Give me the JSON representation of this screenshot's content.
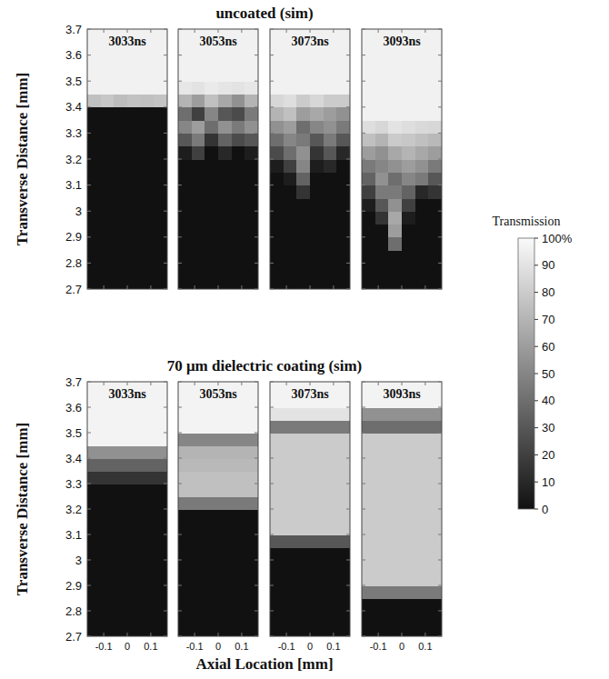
{
  "chart_data": [
    {
      "type": "heatmap",
      "title": "uncoated (sim)",
      "ylabel": "Transverse Distance [mm]",
      "xlim": [
        -0.17,
        0.17
      ],
      "xticks": [
        -0.1,
        0,
        0.1
      ],
      "ylim": [
        2.7,
        3.7
      ],
      "yticks": [
        2.7,
        2.8,
        2.9,
        3,
        3.1,
        3.2,
        3.3,
        3.4,
        3.5,
        3.6,
        3.7
      ],
      "tick_labels": "y",
      "colorbar": {
        "title": "Transmission",
        "range": [
          0,
          100
        ],
        "ticks": [
          0,
          10,
          20,
          30,
          40,
          50,
          60,
          70,
          80,
          90,
          {
            "value": 100,
            "label": "100%"
          }
        ]
      },
      "panels": [
        {
          "label": "3033ns",
          "cells": [
            [
              0,
              0,
              0,
              0,
              0,
              0
            ],
            [
              0,
              0,
              0,
              0,
              0,
              0
            ],
            [
              0,
              0,
              0,
              0,
              0,
              0
            ],
            [
              0,
              0,
              0,
              0,
              0,
              0
            ],
            [
              0,
              0,
              0,
              0,
              0,
              0
            ],
            [
              0,
              0,
              0,
              0,
              0,
              0
            ],
            [
              0,
              0,
              0,
              0,
              0,
              0
            ],
            [
              0,
              0,
              0,
              0,
              0,
              0
            ],
            [
              0,
              0,
              0,
              0,
              0,
              0
            ],
            [
              0,
              0,
              0,
              0,
              0,
              0
            ],
            [
              0,
              0,
              0,
              0,
              0,
              0
            ],
            [
              0,
              0,
              0,
              0,
              0,
              0
            ],
            [
              0,
              0,
              0,
              0,
              0,
              0
            ],
            [
              0,
              0,
              0,
              0,
              0,
              0
            ],
            [
              75,
              78,
              74,
              76,
              75,
              77
            ],
            [
              96,
              96,
              96,
              96,
              96,
              96
            ],
            [
              96,
              96,
              96,
              96,
              96,
              96
            ],
            [
              96,
              96,
              96,
              96,
              96,
              96
            ],
            [
              96,
              96,
              96,
              96,
              96,
              96
            ],
            [
              96,
              96,
              96,
              96,
              96,
              96
            ]
          ]
        },
        {
          "label": "3053ns",
          "cells": [
            [
              0,
              0,
              0,
              0,
              0,
              0
            ],
            [
              0,
              0,
              0,
              0,
              0,
              0
            ],
            [
              0,
              0,
              0,
              0,
              0,
              0
            ],
            [
              0,
              0,
              0,
              0,
              0,
              0
            ],
            [
              0,
              0,
              0,
              0,
              0,
              0
            ],
            [
              0,
              0,
              0,
              0,
              0,
              0
            ],
            [
              0,
              0,
              0,
              0,
              0,
              0
            ],
            [
              0,
              0,
              0,
              0,
              0,
              0
            ],
            [
              0,
              0,
              0,
              0,
              0,
              0
            ],
            [
              0,
              0,
              0,
              0,
              0,
              0
            ],
            [
              5,
              20,
              0,
              10,
              0,
              5
            ],
            [
              30,
              45,
              15,
              35,
              25,
              30
            ],
            [
              50,
              60,
              40,
              55,
              45,
              55
            ],
            [
              40,
              20,
              50,
              30,
              25,
              45
            ],
            [
              70,
              60,
              75,
              65,
              55,
              70
            ],
            [
              92,
              90,
              93,
              91,
              90,
              92
            ],
            [
              96,
              96,
              96,
              96,
              96,
              96
            ],
            [
              96,
              96,
              96,
              96,
              96,
              96
            ],
            [
              96,
              96,
              96,
              96,
              96,
              96
            ],
            [
              96,
              96,
              96,
              96,
              96,
              96
            ]
          ]
        },
        {
          "label": "3073ns",
          "cells": [
            [
              0,
              0,
              0,
              0,
              0,
              0
            ],
            [
              0,
              0,
              0,
              0,
              0,
              0
            ],
            [
              0,
              0,
              0,
              0,
              0,
              0
            ],
            [
              0,
              0,
              0,
              0,
              0,
              0
            ],
            [
              0,
              0,
              0,
              0,
              0,
              0
            ],
            [
              0,
              0,
              0,
              0,
              0,
              0
            ],
            [
              0,
              0,
              0,
              0,
              0,
              0
            ],
            [
              0,
              0,
              15,
              0,
              0,
              0
            ],
            [
              0,
              5,
              35,
              0,
              0,
              0
            ],
            [
              5,
              20,
              50,
              5,
              10,
              0
            ],
            [
              25,
              40,
              55,
              15,
              30,
              10
            ],
            [
              40,
              50,
              45,
              30,
              45,
              30
            ],
            [
              55,
              60,
              40,
              50,
              55,
              45
            ],
            [
              70,
              75,
              60,
              65,
              60,
              55
            ],
            [
              85,
              88,
              80,
              85,
              80,
              80
            ],
            [
              96,
              96,
              96,
              96,
              96,
              96
            ],
            [
              96,
              96,
              96,
              96,
              96,
              96
            ],
            [
              96,
              96,
              96,
              96,
              96,
              96
            ],
            [
              96,
              96,
              96,
              96,
              96,
              96
            ],
            [
              96,
              96,
              96,
              96,
              96,
              96
            ]
          ]
        },
        {
          "label": "3093ns",
          "cells": [
            [
              0,
              0,
              0,
              0,
              0,
              0
            ],
            [
              0,
              0,
              0,
              0,
              0,
              0
            ],
            [
              0,
              0,
              0,
              0,
              0,
              0
            ],
            [
              0,
              0,
              40,
              0,
              0,
              0
            ],
            [
              0,
              0,
              60,
              0,
              0,
              0
            ],
            [
              0,
              15,
              65,
              5,
              0,
              0
            ],
            [
              5,
              30,
              55,
              20,
              0,
              0
            ],
            [
              20,
              45,
              45,
              35,
              10,
              15
            ],
            [
              35,
              55,
              40,
              50,
              45,
              30
            ],
            [
              45,
              50,
              55,
              60,
              55,
              45
            ],
            [
              60,
              55,
              65,
              70,
              65,
              60
            ],
            [
              75,
              70,
              80,
              78,
              75,
              72
            ],
            [
              88,
              85,
              90,
              88,
              86,
              85
            ],
            [
              96,
              96,
              96,
              96,
              96,
              96
            ],
            [
              96,
              96,
              96,
              96,
              96,
              96
            ],
            [
              96,
              96,
              96,
              96,
              96,
              96
            ],
            [
              96,
              96,
              96,
              96,
              96,
              96
            ],
            [
              96,
              96,
              96,
              96,
              96,
              96
            ],
            [
              96,
              96,
              96,
              96,
              96,
              96
            ],
            [
              96,
              96,
              96,
              96,
              96,
              96
            ]
          ]
        }
      ]
    },
    {
      "type": "heatmap",
      "title": "70 μm dielectric coating (sim)",
      "xlabel": "Axial Location [mm]",
      "ylabel": "Transverse Distance [mm]",
      "xlim": [
        -0.17,
        0.17
      ],
      "xticks": [
        -0.1,
        0,
        0.1
      ],
      "ylim": [
        2.7,
        3.7
      ],
      "yticks": [
        2.7,
        2.8,
        2.9,
        3,
        3.1,
        3.2,
        3.3,
        3.4,
        3.5,
        3.6,
        3.7
      ],
      "tick_labels": true,
      "panels": [
        {
          "label": "3033ns",
          "cells": [
            [
              0
            ],
            [
              0
            ],
            [
              0
            ],
            [
              0
            ],
            [
              0
            ],
            [
              0
            ],
            [
              0
            ],
            [
              0
            ],
            [
              0
            ],
            [
              0
            ],
            [
              0
            ],
            [
              0
            ],
            [
              15
            ],
            [
              35
            ],
            [
              55
            ],
            [
              97
            ],
            [
              97
            ],
            [
              97
            ],
            [
              97
            ],
            [
              97
            ]
          ]
        },
        {
          "label": "3053ns",
          "cells": [
            [
              0
            ],
            [
              0
            ],
            [
              0
            ],
            [
              0
            ],
            [
              0
            ],
            [
              0
            ],
            [
              0
            ],
            [
              0
            ],
            [
              0
            ],
            [
              0
            ],
            [
              45
            ],
            [
              75
            ],
            [
              75
            ],
            [
              72
            ],
            [
              70
            ],
            [
              50
            ],
            [
              97
            ],
            [
              97
            ],
            [
              97
            ],
            [
              97
            ]
          ]
        },
        {
          "label": "3073ns",
          "cells": [
            [
              0
            ],
            [
              0
            ],
            [
              0
            ],
            [
              0
            ],
            [
              0
            ],
            [
              0
            ],
            [
              0
            ],
            [
              30
            ],
            [
              80
            ],
            [
              80
            ],
            [
              80
            ],
            [
              80
            ],
            [
              80
            ],
            [
              80
            ],
            [
              80
            ],
            [
              80
            ],
            [
              45
            ],
            [
              90
            ],
            [
              97
            ],
            [
              97
            ]
          ]
        },
        {
          "label": "3093ns",
          "cells": [
            [
              0
            ],
            [
              0
            ],
            [
              0
            ],
            [
              45
            ],
            [
              80
            ],
            [
              80
            ],
            [
              80
            ],
            [
              80
            ],
            [
              80
            ],
            [
              80
            ],
            [
              80
            ],
            [
              80
            ],
            [
              80
            ],
            [
              80
            ],
            [
              80
            ],
            [
              80
            ],
            [
              40
            ],
            [
              55
            ],
            [
              97
            ],
            [
              97
            ]
          ]
        }
      ]
    }
  ]
}
